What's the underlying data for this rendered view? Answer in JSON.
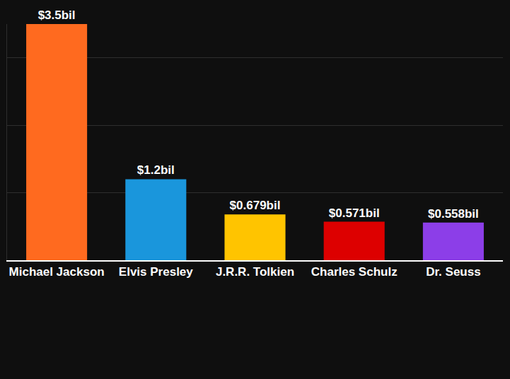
{
  "chart_data": {
    "type": "bar",
    "categories": [
      "Michael Jackson",
      "Elvis Presley",
      "J.R.R. Tolkien",
      "Charles Schulz",
      "Dr. Seuss"
    ],
    "values": [
      3.5,
      1.2,
      0.679,
      0.571,
      0.558
    ],
    "value_labels": [
      "$3.5bil",
      "$1.2bil",
      "$0.679bil",
      "$0.571bil",
      "$0.558bil"
    ],
    "colors": [
      "#ff6a1f",
      "#1a96dc",
      "#ffc400",
      "#dd0000",
      "#8c3ee8"
    ],
    "ylim": [
      0,
      3.5
    ],
    "yticks": [
      0,
      1,
      2,
      3
    ],
    "grid": true,
    "data_labels": true,
    "tick_labels": "x"
  }
}
